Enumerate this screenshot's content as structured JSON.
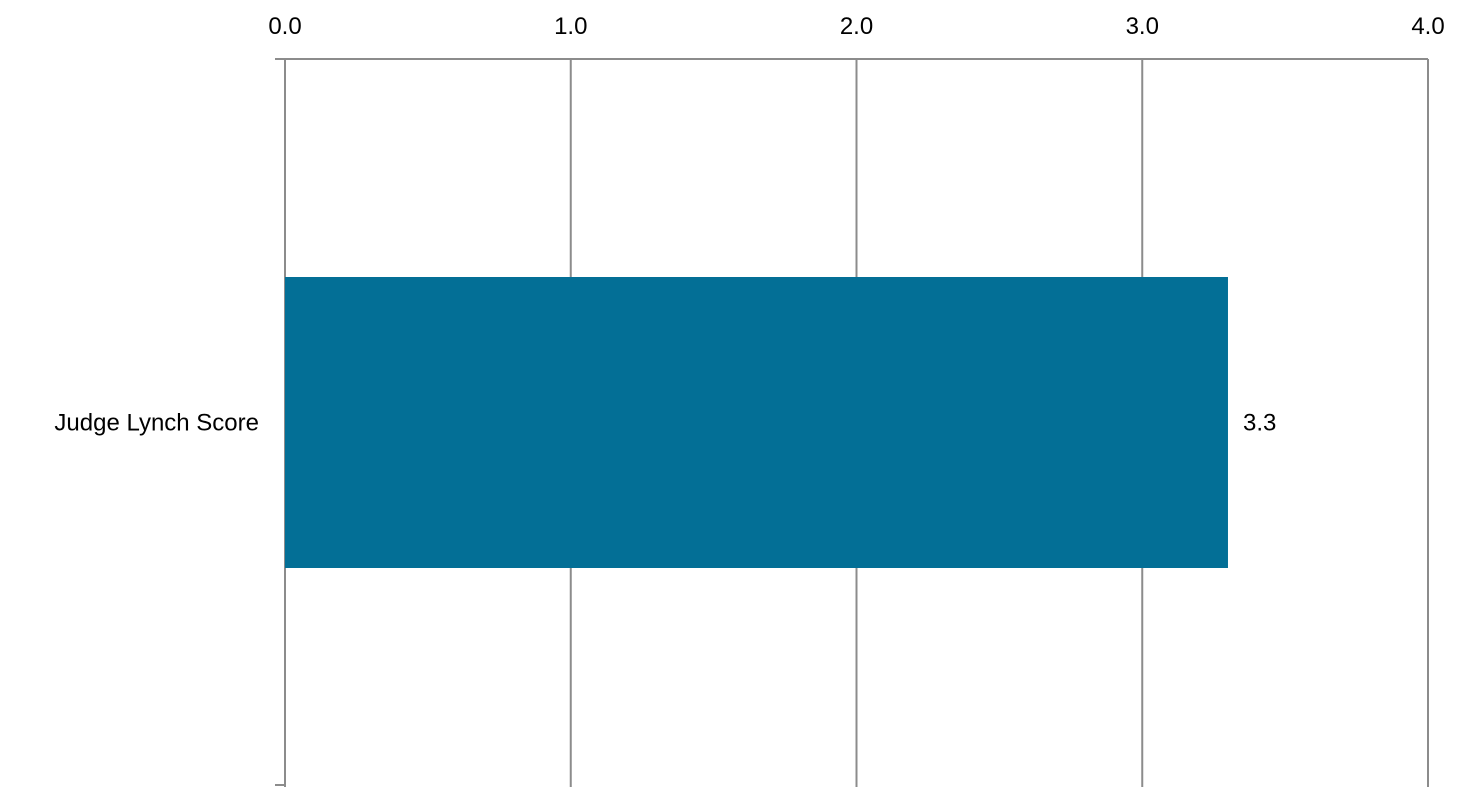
{
  "chart_data": {
    "type": "bar",
    "orientation": "horizontal",
    "categories": [
      "Judge Lynch Score"
    ],
    "values": [
      3.3
    ],
    "data_labels": [
      "3.3"
    ],
    "xlim": [
      0,
      4
    ],
    "x_ticks": [
      0,
      1,
      2,
      3,
      4
    ],
    "x_tick_labels": [
      "0.0",
      "1.0",
      "2.0",
      "3.0",
      "4.0"
    ],
    "x_axis_position": "top",
    "grid": true,
    "legend": "none",
    "bar_color": "#036f96",
    "grid_color": "#8c8c8c"
  }
}
